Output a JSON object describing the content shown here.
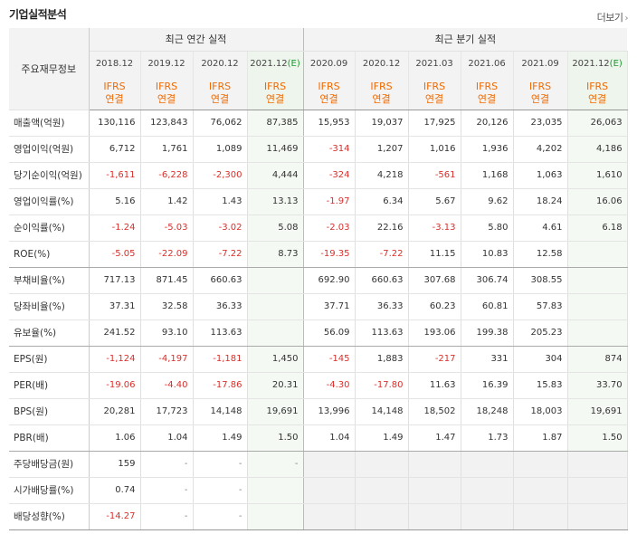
{
  "header": {
    "title": "기업실적분석",
    "more_label": "더보기",
    "more_chevron": "›"
  },
  "table": {
    "row_header": "주요재무정보",
    "group_annual": "최근 연간 실적",
    "group_quarter": "최근 분기 실적",
    "annual_periods": [
      {
        "date": "2018.12",
        "est": ""
      },
      {
        "date": "2019.12",
        "est": ""
      },
      {
        "date": "2020.12",
        "est": ""
      },
      {
        "date": "2021.12",
        "est": "(E)"
      }
    ],
    "quarter_periods": [
      {
        "date": "2020.09",
        "est": ""
      },
      {
        "date": "2020.12",
        "est": ""
      },
      {
        "date": "2021.03",
        "est": ""
      },
      {
        "date": "2021.06",
        "est": ""
      },
      {
        "date": "2021.09",
        "est": ""
      },
      {
        "date": "2021.12",
        "est": "(E)"
      }
    ],
    "basis_line1": "IFRS",
    "basis_line2": "연결",
    "rows": [
      {
        "label": "매출액(억원)",
        "values": [
          "130,116",
          "123,843",
          "76,062",
          "87,385",
          "15,953",
          "19,037",
          "17,925",
          "20,126",
          "23,035",
          "26,063"
        ]
      },
      {
        "label": "영업이익(억원)",
        "values": [
          "6,712",
          "1,761",
          "1,089",
          "11,469",
          "-314",
          "1,207",
          "1,016",
          "1,936",
          "4,202",
          "4,186"
        ]
      },
      {
        "label": "당기순이익(억원)",
        "values": [
          "-1,611",
          "-6,228",
          "-2,300",
          "4,444",
          "-324",
          "4,218",
          "-561",
          "1,168",
          "1,063",
          "1,610"
        ]
      },
      {
        "label": "영업이익률(%)",
        "values": [
          "5.16",
          "1.42",
          "1.43",
          "13.13",
          "-1.97",
          "6.34",
          "5.67",
          "9.62",
          "18.24",
          "16.06"
        ]
      },
      {
        "label": "순이익률(%)",
        "values": [
          "-1.24",
          "-5.03",
          "-3.02",
          "5.08",
          "-2.03",
          "22.16",
          "-3.13",
          "5.80",
          "4.61",
          "6.18"
        ]
      },
      {
        "label": "ROE(%)",
        "values": [
          "-5.05",
          "-22.09",
          "-7.22",
          "8.73",
          "-19.35",
          "-7.22",
          "11.15",
          "10.83",
          "12.58",
          ""
        ]
      },
      {
        "label": "부채비율(%)",
        "values": [
          "717.13",
          "871.45",
          "660.63",
          "",
          "692.90",
          "660.63",
          "307.68",
          "306.74",
          "308.55",
          ""
        ]
      },
      {
        "label": "당좌비율(%)",
        "values": [
          "37.31",
          "32.58",
          "36.33",
          "",
          "37.71",
          "36.33",
          "60.23",
          "60.81",
          "57.83",
          ""
        ]
      },
      {
        "label": "유보율(%)",
        "values": [
          "241.52",
          "93.10",
          "113.63",
          "",
          "56.09",
          "113.63",
          "193.06",
          "199.38",
          "205.23",
          ""
        ]
      },
      {
        "label": "EPS(원)",
        "values": [
          "-1,124",
          "-4,197",
          "-1,181",
          "1,450",
          "-145",
          "1,883",
          "-217",
          "331",
          "304",
          "874"
        ]
      },
      {
        "label": "PER(배)",
        "values": [
          "-19.06",
          "-4.40",
          "-17.86",
          "20.31",
          "-4.30",
          "-17.80",
          "11.63",
          "16.39",
          "15.83",
          "33.70"
        ]
      },
      {
        "label": "BPS(원)",
        "values": [
          "20,281",
          "17,723",
          "14,148",
          "19,691",
          "13,996",
          "14,148",
          "18,502",
          "18,248",
          "18,003",
          "19,691"
        ]
      },
      {
        "label": "PBR(배)",
        "values": [
          "1.06",
          "1.04",
          "1.49",
          "1.50",
          "1.04",
          "1.49",
          "1.47",
          "1.73",
          "1.87",
          "1.50"
        ]
      },
      {
        "label": "주당배당금(원)",
        "values": [
          "159",
          "-",
          "-",
          "-",
          "",
          "",
          "",
          "",
          "",
          ""
        ]
      },
      {
        "label": "시가배당률(%)",
        "values": [
          "0.74",
          "-",
          "-",
          "",
          "",
          "",
          "",
          "",
          "",
          ""
        ]
      },
      {
        "label": "배당성향(%)",
        "values": [
          "-14.27",
          "-",
          "-",
          "",
          "",
          "",
          "",
          "",
          "",
          ""
        ]
      }
    ]
  }
}
